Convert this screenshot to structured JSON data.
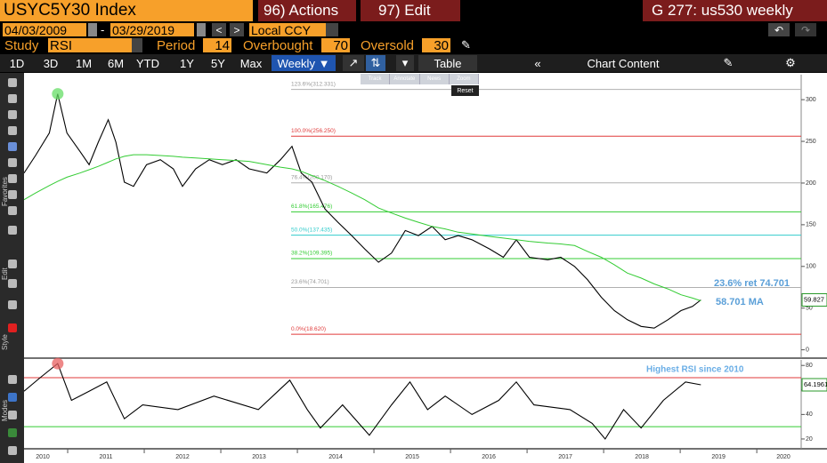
{
  "header": {
    "security": "USYC5Y30 Index",
    "actions": "96) Actions",
    "edit": "97) Edit",
    "page": "G 277: us530 weekly"
  },
  "range": {
    "start": "04/03/2009",
    "end": "03/29/2019",
    "currency": "Local CCY"
  },
  "study": {
    "label": "Study",
    "name": "RSI",
    "period_label": "Period",
    "period": "14",
    "overbought_label": "Overbought",
    "overbought": "70",
    "oversold_label": "Oversold",
    "oversold": "30"
  },
  "toolbar": {
    "periods": [
      "1D",
      "3D",
      "1M",
      "6M",
      "YTD",
      "1Y",
      "5Y",
      "Max"
    ],
    "frequency": "Weekly",
    "table": "Table",
    "chart_content": "Chart Content"
  },
  "popup": {
    "items": [
      "Track",
      "Annotate",
      "News",
      "Zoom"
    ],
    "reset": "Reset"
  },
  "sidebar": {
    "favorites": "Favorites",
    "edit": "Edit",
    "style": "Style",
    "modes": "Modes"
  },
  "chart_data": [
    {
      "type": "line",
      "x": [
        2010.43,
        2010.58,
        2010.76,
        2010.87,
        2010.99,
        2011.16,
        2011.28,
        2011.4,
        2011.53,
        2011.63,
        2011.74,
        2011.86,
        2012.03,
        2012.21,
        2012.38,
        2012.5,
        2012.67,
        2012.85,
        2013.02,
        2013.2,
        2013.37,
        2013.6,
        2013.78,
        2013.93,
        2014.05,
        2014.19,
        2014.36,
        2014.53,
        2014.71,
        2014.88,
        2015.06,
        2015.23,
        2015.41,
        2015.58,
        2015.76,
        2015.93,
        2016.1,
        2016.28,
        2016.51,
        2016.69,
        2016.86,
        2017.03,
        2017.27,
        2017.44,
        2017.62,
        2017.79,
        2017.97,
        2018.14,
        2018.31,
        2018.49,
        2018.66,
        2018.84,
        2019.01,
        2019.16,
        2019.27
      ],
      "series": [
        {
          "name": "USYC5Y30 Index",
          "color": "#000000",
          "values": [
            212,
            233,
            260,
            307,
            260,
            238,
            222,
            249,
            276,
            249,
            201,
            196,
            222,
            228,
            217,
            196,
            217,
            228,
            222,
            228,
            217,
            212,
            228,
            244,
            212,
            201,
            169,
            153,
            137,
            121,
            105,
            116,
            143,
            137,
            148,
            132,
            137,
            132,
            121,
            111,
            132,
            111,
            108,
            111,
            100,
            84,
            63,
            47,
            36,
            28,
            26,
            36,
            47,
            52,
            59.827
          ]
        },
        {
          "name": "MA",
          "color": "#33cc33",
          "values": [
            180,
            188,
            197,
            202,
            207,
            212,
            216,
            220,
            225,
            229,
            232,
            234,
            234,
            233,
            232,
            231,
            230,
            229,
            228,
            227,
            226,
            222,
            219,
            217,
            214,
            209,
            203,
            196,
            188,
            180,
            170,
            164,
            158,
            153,
            148,
            145,
            141,
            139,
            136,
            134,
            132,
            130,
            128,
            127,
            125,
            118,
            111,
            102,
            92,
            86,
            79,
            73,
            66,
            62,
            58.701
          ]
        }
      ],
      "levels": [
        {
          "label": "123.6%(312.331)",
          "value": 312.331,
          "color": "#b0b0b0"
        },
        {
          "label": "100.0%(256.250)",
          "value": 256.25,
          "color": "#e03a3a"
        },
        {
          "label": "76.4%(200.170)",
          "value": 200.17,
          "color": "#b0b0b0"
        },
        {
          "label": "61.8%(165.476)",
          "value": 165.476,
          "color": "#33cc33"
        },
        {
          "label": "50.0%(137.435)",
          "value": 137.435,
          "color": "#33cccc"
        },
        {
          "label": "38.2%(109.395)",
          "value": 109.395,
          "color": "#33cc33"
        },
        {
          "label": "23.6%(74.701)",
          "value": 74.701,
          "color": "#b0b0b0"
        },
        {
          "label": "0.0%(18.620)",
          "value": 18.62,
          "color": "#e03a3a"
        }
      ],
      "annotations": [
        "23.6% ret 74.701",
        "58.701 MA"
      ],
      "xlim": [
        2010.43,
        2020.58
      ],
      "ylim": [
        -10,
        330
      ],
      "yticks": [
        0,
        50,
        100,
        150,
        200,
        250,
        300
      ]
    },
    {
      "type": "line",
      "title": "Highest RSI since 2010",
      "x": [
        2010.43,
        2010.64,
        2010.87,
        2011.05,
        2011.28,
        2011.51,
        2011.74,
        2011.98,
        2012.44,
        2012.91,
        2013.49,
        2013.9,
        2014.13,
        2014.3,
        2014.59,
        2014.94,
        2015.23,
        2015.47,
        2015.7,
        2015.93,
        2016.28,
        2016.63,
        2016.86,
        2017.09,
        2017.56,
        2017.85,
        2018.02,
        2018.26,
        2018.49,
        2018.78,
        2019.07,
        2019.27
      ],
      "series": [
        {
          "name": "RSI",
          "color": "#000000",
          "values": [
            59,
            70,
            81.5,
            51.5,
            59,
            66.5,
            36.5,
            47.8,
            44,
            55,
            44,
            68,
            44,
            29,
            47.8,
            23,
            47.8,
            66.5,
            44,
            55,
            40,
            51.5,
            66.5,
            47.8,
            44,
            32.7,
            20,
            44,
            29,
            51.5,
            66.5,
            64.1961
          ]
        }
      ],
      "hlines": [
        {
          "value": 70,
          "color": "#e03a3a"
        },
        {
          "value": 30,
          "color": "#33cc33"
        }
      ],
      "xlim": [
        2010.43,
        2020.58
      ],
      "ylim": [
        12,
        84.5
      ],
      "yticks": [
        20,
        40,
        60,
        80
      ],
      "xticks": [
        2010,
        2011,
        2012,
        2013,
        2014,
        2015,
        2016,
        2017,
        2018,
        2019,
        2020
      ]
    }
  ]
}
